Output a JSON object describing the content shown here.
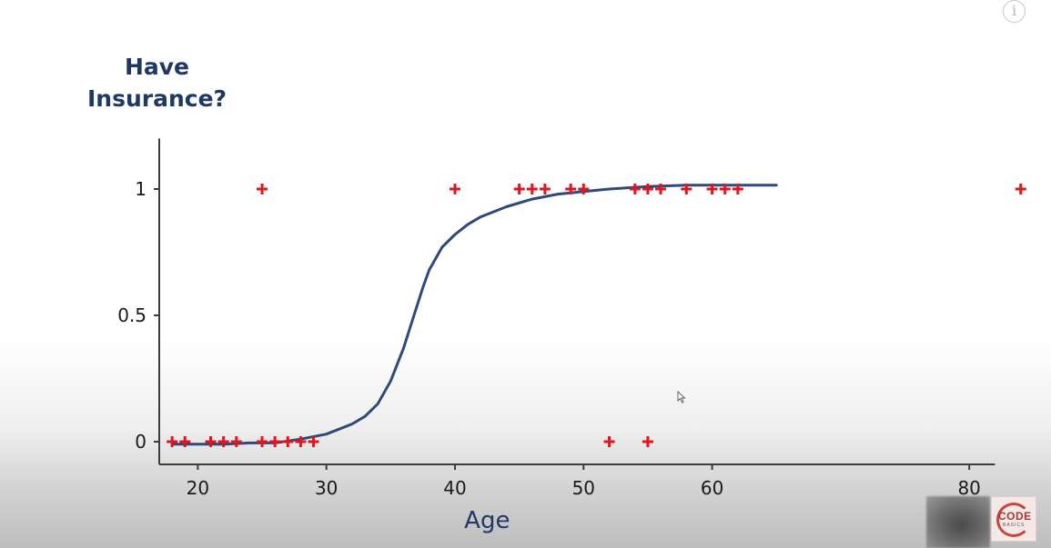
{
  "chart_data": {
    "type": "scatter",
    "title": "",
    "ylabel_lines": [
      "Have",
      "Insurance?"
    ],
    "xlabel": "Age",
    "x_ticks": [
      20,
      30,
      40,
      50,
      60,
      80
    ],
    "y_ticks": [
      {
        "value": 0,
        "label": "0"
      },
      {
        "value": 0.5,
        "label": "0.5"
      },
      {
        "value": 1,
        "label": "1"
      }
    ],
    "xlim": [
      17,
      82
    ],
    "ylim": [
      -0.09,
      1.2
    ],
    "grid": false,
    "points": [
      {
        "x": 18,
        "y": 0
      },
      {
        "x": 19,
        "y": 0
      },
      {
        "x": 21,
        "y": 0
      },
      {
        "x": 22,
        "y": 0
      },
      {
        "x": 23,
        "y": 0
      },
      {
        "x": 25,
        "y": 0
      },
      {
        "x": 26,
        "y": 0
      },
      {
        "x": 27,
        "y": 0
      },
      {
        "x": 28,
        "y": 0
      },
      {
        "x": 29,
        "y": 0
      },
      {
        "x": 52,
        "y": 0
      },
      {
        "x": 55,
        "y": 0
      },
      {
        "x": 25,
        "y": 1
      },
      {
        "x": 40,
        "y": 1
      },
      {
        "x": 45,
        "y": 1
      },
      {
        "x": 46,
        "y": 1
      },
      {
        "x": 47,
        "y": 1
      },
      {
        "x": 49,
        "y": 1
      },
      {
        "x": 50,
        "y": 1
      },
      {
        "x": 54,
        "y": 1
      },
      {
        "x": 55,
        "y": 1
      },
      {
        "x": 56,
        "y": 1
      },
      {
        "x": 58,
        "y": 1
      },
      {
        "x": 60,
        "y": 1
      },
      {
        "x": 61,
        "y": 1
      },
      {
        "x": 62,
        "y": 1
      },
      {
        "x": 84,
        "y": 1
      }
    ],
    "fit_curve": {
      "type": "logistic",
      "x": [
        18,
        20,
        22,
        24,
        26,
        28,
        30,
        32,
        33,
        34,
        35,
        36,
        36.5,
        37,
        37.5,
        38,
        39,
        40,
        41,
        42,
        44,
        46,
        48,
        50,
        52,
        55,
        58,
        61,
        65
      ],
      "y": [
        -0.01,
        -0.01,
        -0.01,
        -0.005,
        -0.005,
        0.01,
        0.03,
        0.07,
        0.1,
        0.15,
        0.24,
        0.37,
        0.45,
        0.53,
        0.61,
        0.68,
        0.77,
        0.82,
        0.86,
        0.89,
        0.93,
        0.96,
        0.98,
        0.99,
        1.0,
        1.01,
        1.015,
        1.015,
        1.015
      ]
    },
    "colors": {
      "marker": "#e0171f",
      "curve": "#2f4a7a",
      "axis": "#3c3c3c",
      "title": "#1f3864",
      "tick_label": "#1a1a1a"
    }
  },
  "branding": {
    "logo_word": "CODE",
    "logo_sub": "BASICS"
  },
  "controls": {
    "info_glyph": "i"
  }
}
